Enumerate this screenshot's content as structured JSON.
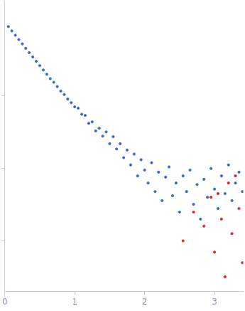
{
  "chart_data": {
    "type": "scatter",
    "series": [
      {
        "color": "#3a6bc4",
        "marker": "circle",
        "x": [
          0.05,
          0.1,
          0.15,
          0.2,
          0.25,
          0.3,
          0.35,
          0.4,
          0.45,
          0.5,
          0.55,
          0.6,
          0.65,
          0.7,
          0.75,
          0.8,
          0.85,
          0.9,
          0.95,
          1.0,
          1.05,
          1.1,
          1.15,
          1.2,
          1.25,
          1.3,
          1.35,
          1.4,
          1.45,
          1.5,
          1.55,
          1.6,
          1.65,
          1.7,
          1.75,
          1.8,
          1.85,
          1.9,
          1.95,
          2.0,
          2.05,
          2.1,
          2.15,
          2.2,
          2.25,
          2.3,
          2.35,
          2.4,
          2.45,
          2.5,
          2.55,
          2.6,
          2.65,
          2.7,
          2.75,
          2.8,
          2.85,
          2.9,
          2.95,
          3.0,
          3.05,
          3.1,
          3.15,
          3.2,
          3.25,
          3.3,
          3.35,
          3.4
        ],
        "values": [
          0.912,
          0.794,
          0.692,
          0.603,
          0.525,
          0.457,
          0.398,
          0.347,
          0.302,
          0.263,
          0.229,
          0.2,
          0.174,
          0.155,
          0.135,
          0.117,
          0.105,
          0.091,
          0.081,
          0.071,
          0.068,
          0.056,
          0.054,
          0.042,
          0.044,
          0.033,
          0.036,
          0.028,
          0.032,
          0.022,
          0.0275,
          0.0186,
          0.022,
          0.0141,
          0.018,
          0.0112,
          0.0158,
          0.0079,
          0.0132,
          0.0095,
          0.0063,
          0.012,
          0.0048,
          0.0089,
          0.0036,
          0.0076,
          0.0105,
          0.0042,
          0.0063,
          0.0025,
          0.0079,
          0.0048,
          0.0095,
          0.0032,
          0.006,
          0.002,
          0.0071,
          0.004,
          0.01,
          0.0052,
          0.0028,
          0.0079,
          0.0045,
          0.0112,
          0.0036,
          0.0063,
          0.0089,
          0.0048
        ]
      },
      {
        "color": "#e0262b",
        "marker": "circle",
        "x": [
          2.55,
          2.7,
          2.85,
          2.95,
          3.0,
          3.05,
          3.1,
          3.15,
          3.2,
          3.25,
          3.3,
          3.35,
          3.4
        ],
        "values": [
          0.001,
          0.0025,
          0.0016,
          0.004,
          0.0007,
          0.0045,
          0.002,
          0.00032,
          0.0063,
          0.00126,
          0.0079,
          0.0028,
          0.0005
        ]
      }
    ],
    "xlim": [
      0,
      3.41
    ],
    "xticks": [
      0,
      1,
      2,
      3
    ],
    "ylim": [
      0.0002,
      2
    ],
    "yticks": [
      0.001,
      0.01,
      0.1
    ],
    "log": "y",
    "grid": false,
    "tick_labels": "x"
  }
}
